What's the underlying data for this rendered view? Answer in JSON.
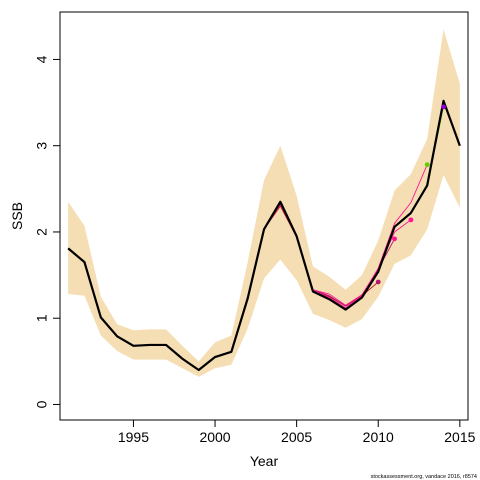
{
  "chart_data": {
    "type": "line",
    "xlabel": "Year",
    "ylabel": "SSB",
    "xlim": [
      1990.5,
      2015.5
    ],
    "ylim": [
      -0.18,
      4.55
    ],
    "xticks": [
      1995,
      2000,
      2005,
      2010,
      2015
    ],
    "yticks": [
      0,
      1,
      2,
      3,
      4
    ],
    "grid": false,
    "colors": {
      "band": "#f5deb3",
      "main": "#000000",
      "retro": [
        "#c8102e",
        "#b5176e",
        "#ff1493",
        "#ff1493",
        "#66cc00",
        "#9400d3"
      ]
    },
    "confidence_band": {
      "x": [
        1991,
        1992,
        1993,
        1994,
        1995,
        1996,
        1997,
        1998,
        1999,
        2000,
        2001,
        2002,
        2003,
        2004,
        2005,
        2006,
        2007,
        2008,
        2009,
        2010,
        2011,
        2012,
        2013,
        2014,
        2015
      ],
      "lower": [
        1.28,
        1.26,
        0.8,
        0.62,
        0.52,
        0.52,
        0.52,
        0.42,
        0.32,
        0.42,
        0.46,
        0.88,
        1.46,
        1.68,
        1.44,
        1.05,
        0.98,
        0.89,
        0.99,
        1.25,
        1.63,
        1.73,
        2.03,
        2.66,
        2.28
      ],
      "upper": [
        2.35,
        2.07,
        1.25,
        0.93,
        0.86,
        0.87,
        0.87,
        0.68,
        0.5,
        0.72,
        0.8,
        1.65,
        2.6,
        3.0,
        2.42,
        1.6,
        1.48,
        1.33,
        1.5,
        1.9,
        2.48,
        2.67,
        3.08,
        4.35,
        3.72
      ]
    },
    "series": [
      {
        "x": [
          1991,
          1992,
          1993,
          1994,
          1995,
          1996,
          1997,
          1998,
          1999,
          2000,
          2001,
          2002,
          2003,
          2004,
          2005,
          2006,
          2007,
          2008,
          2009,
          2010,
          2011,
          2012,
          2013,
          2014,
          2015
        ],
        "values": [
          1.81,
          1.65,
          1.01,
          0.79,
          0.68,
          0.69,
          0.69,
          0.53,
          0.4,
          0.55,
          0.61,
          1.23,
          2.03,
          2.35,
          1.95,
          1.31,
          1.22,
          1.1,
          1.24,
          1.54,
          2.06,
          2.22,
          2.54,
          3.52,
          3.0
        ]
      },
      {
        "x": [
          1991,
          1992,
          1993,
          1994,
          1995,
          1996,
          1997,
          1998,
          1999,
          2000,
          2001,
          2002,
          2003,
          2004,
          2005,
          2006,
          2007,
          2008,
          2009,
          2010
        ],
        "values": [
          1.81,
          1.65,
          1.01,
          0.79,
          0.68,
          0.69,
          0.69,
          0.53,
          0.4,
          0.55,
          0.61,
          1.23,
          2.03,
          2.3,
          1.94,
          1.33,
          1.25,
          1.14,
          1.26,
          1.42
        ]
      },
      {
        "x": [
          1991,
          1992,
          1993,
          1994,
          1995,
          1996,
          1997,
          1998,
          1999,
          2000,
          2001,
          2002,
          2003,
          2004,
          2005,
          2006,
          2007,
          2008,
          2009,
          2010,
          2011
        ],
        "values": [
          1.81,
          1.65,
          1.01,
          0.79,
          0.68,
          0.69,
          0.69,
          0.53,
          0.4,
          0.55,
          0.61,
          1.23,
          2.03,
          2.32,
          1.94,
          1.33,
          1.26,
          1.14,
          1.27,
          1.57,
          1.92
        ]
      },
      {
        "x": [
          1991,
          1992,
          1993,
          1994,
          1995,
          1996,
          1997,
          1998,
          1999,
          2000,
          2001,
          2002,
          2003,
          2004,
          2005,
          2006,
          2007,
          2008,
          2009,
          2010,
          2011,
          2012
        ],
        "values": [
          1.81,
          1.65,
          1.01,
          0.79,
          0.68,
          0.69,
          0.69,
          0.53,
          0.4,
          0.55,
          0.61,
          1.23,
          2.03,
          2.33,
          1.95,
          1.33,
          1.28,
          1.15,
          1.27,
          1.57,
          2.0,
          2.14
        ]
      },
      {
        "x": [
          1991,
          1992,
          1993,
          1994,
          1995,
          1996,
          1997,
          1998,
          1999,
          2000,
          2001,
          2002,
          2003,
          2004,
          2005,
          2006,
          2007,
          2008,
          2009,
          2010,
          2011,
          2012,
          2013
        ],
        "values": [
          1.81,
          1.65,
          1.01,
          0.79,
          0.68,
          0.69,
          0.69,
          0.53,
          0.4,
          0.55,
          0.61,
          1.23,
          2.03,
          2.34,
          1.95,
          1.32,
          1.24,
          1.12,
          1.26,
          1.58,
          2.1,
          2.34,
          2.78
        ]
      },
      {
        "x": [
          1991,
          1992,
          1993,
          1994,
          1995,
          1996,
          1997,
          1998,
          1999,
          2000,
          2001,
          2002,
          2003,
          2004,
          2005,
          2006,
          2007,
          2008,
          2009,
          2010,
          2011,
          2012,
          2013,
          2014
        ],
        "values": [
          1.81,
          1.65,
          1.01,
          0.79,
          0.68,
          0.69,
          0.69,
          0.53,
          0.4,
          0.55,
          0.61,
          1.23,
          2.03,
          2.35,
          1.95,
          1.31,
          1.22,
          1.1,
          1.24,
          1.54,
          2.06,
          2.22,
          2.54,
          3.45
        ]
      }
    ],
    "terminal_points": [
      {
        "x": 2010,
        "y": 1.42
      },
      {
        "x": 2011,
        "y": 1.92
      },
      {
        "x": 2012,
        "y": 2.14
      },
      {
        "x": 2013,
        "y": 2.78
      },
      {
        "x": 2014,
        "y": 3.45
      }
    ],
    "credit": "stockassessment.org,  vandace  2016,  r8574"
  }
}
